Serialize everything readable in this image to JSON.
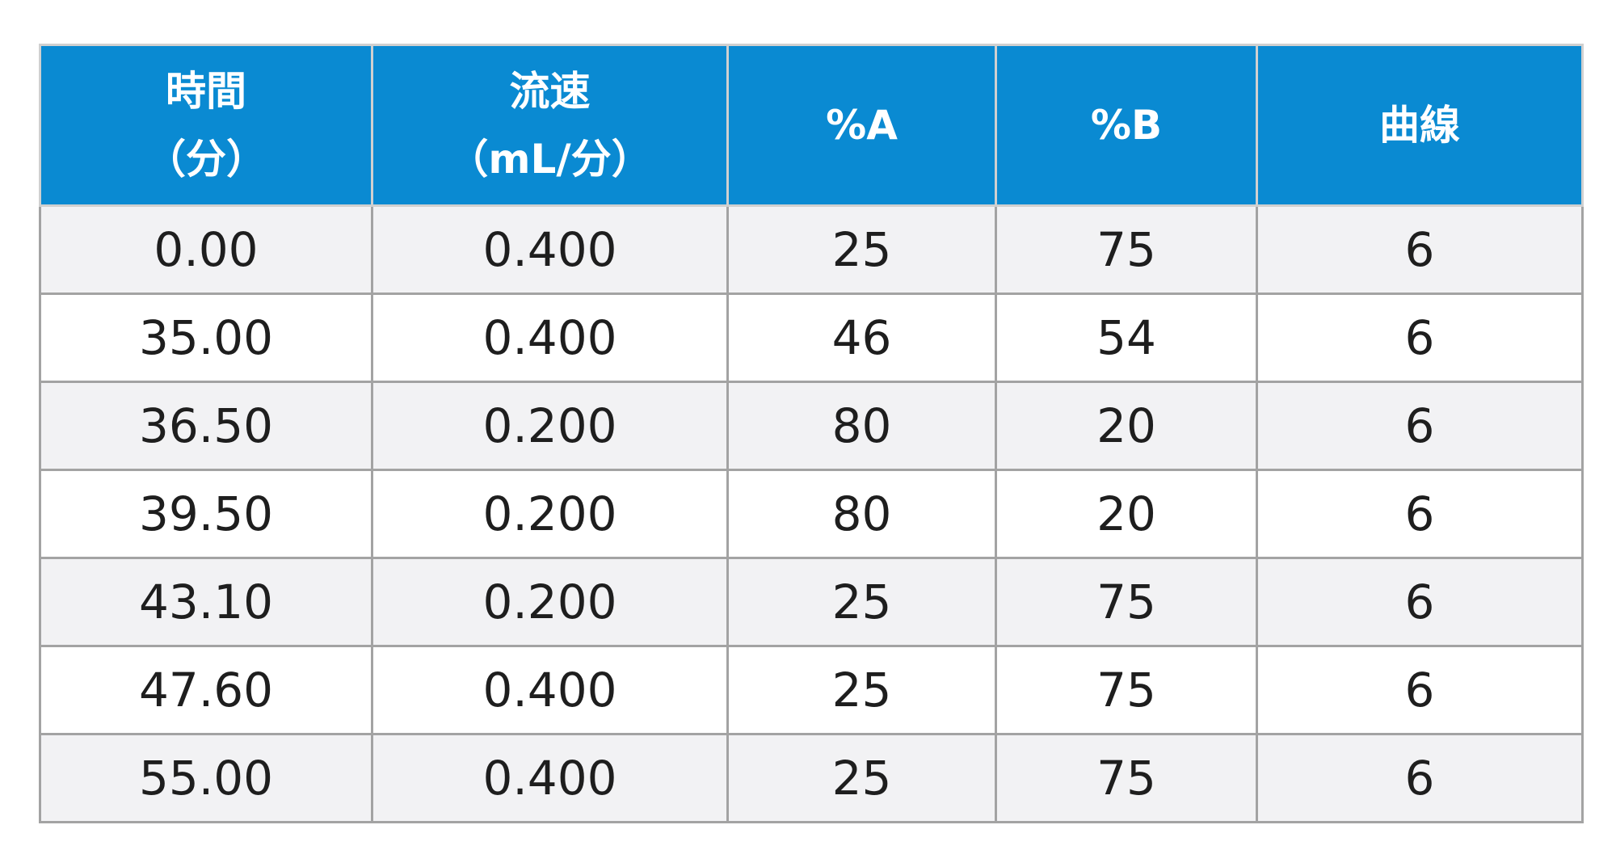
{
  "table": {
    "headers": [
      [
        "時間",
        "（分）"
      ],
      [
        "流速",
        "（mL/分）"
      ],
      [
        "%A"
      ],
      [
        "%B"
      ],
      [
        "曲線"
      ]
    ],
    "rows": [
      [
        "0.00",
        "0.400",
        "25",
        "75",
        "6"
      ],
      [
        "35.00",
        "0.400",
        "46",
        "54",
        "6"
      ],
      [
        "36.50",
        "0.200",
        "80",
        "20",
        "6"
      ],
      [
        "39.50",
        "0.200",
        "80",
        "20",
        "6"
      ],
      [
        "43.10",
        "0.200",
        "25",
        "75",
        "6"
      ],
      [
        "47.60",
        "0.400",
        "25",
        "75",
        "6"
      ],
      [
        "55.00",
        "0.400",
        "25",
        "75",
        "6"
      ]
    ]
  }
}
